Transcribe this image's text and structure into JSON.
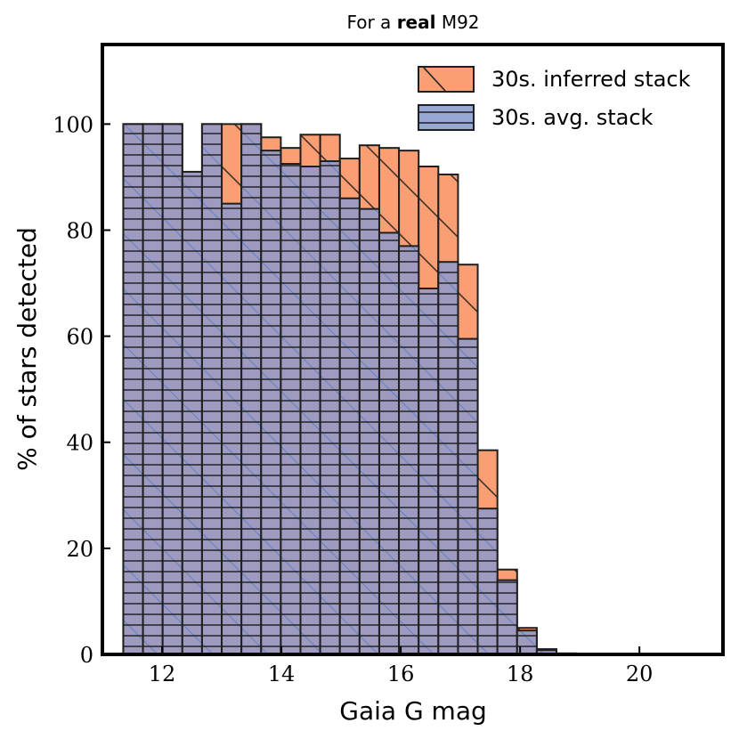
{
  "chart_data": {
    "type": "bar",
    "title_prefix": "For a ",
    "title_bold": "real",
    "title_suffix": " M92",
    "xlabel": "Gaia G mag",
    "ylabel": "% of stars detected",
    "xlim": [
      11.0,
      21.4
    ],
    "ylim": [
      0,
      115
    ],
    "xticks": [
      12,
      14,
      16,
      18,
      20
    ],
    "yticks": [
      0,
      20,
      40,
      60,
      80,
      100
    ],
    "bin_edges": [
      11.35,
      11.68,
      12.01,
      12.34,
      12.67,
      13.0,
      13.33,
      13.66,
      13.99,
      14.32,
      14.65,
      14.98,
      15.31,
      15.64,
      15.97,
      16.3,
      16.63,
      16.96,
      17.29,
      17.62,
      17.95,
      18.28,
      18.61,
      18.94,
      19.27,
      19.6,
      19.93,
      20.26,
      20.59,
      20.92,
      21.25
    ],
    "legend_position": "top-right",
    "series": [
      {
        "name": "30s. inferred stack",
        "color": "#fa8c5c",
        "hatch": "\\",
        "values": [
          100,
          100,
          100,
          91,
          100,
          100,
          100,
          97.5,
          95.5,
          98,
          98,
          93.5,
          96,
          95.5,
          95,
          92,
          90.5,
          73.5,
          38.5,
          16,
          5,
          1,
          0.2,
          0,
          0,
          0,
          0,
          0,
          0,
          0
        ]
      },
      {
        "name": "30s. avg. stack",
        "color": "#8096c8",
        "hatch": "-",
        "values": [
          100,
          100,
          100,
          91,
          100,
          85,
          100,
          95,
          92.5,
          92,
          93,
          86,
          84,
          79.5,
          77,
          69,
          74,
          59.5,
          27.5,
          14,
          4.5,
          0.8,
          0.1,
          0,
          0,
          0,
          0,
          0,
          0,
          0
        ]
      }
    ]
  }
}
